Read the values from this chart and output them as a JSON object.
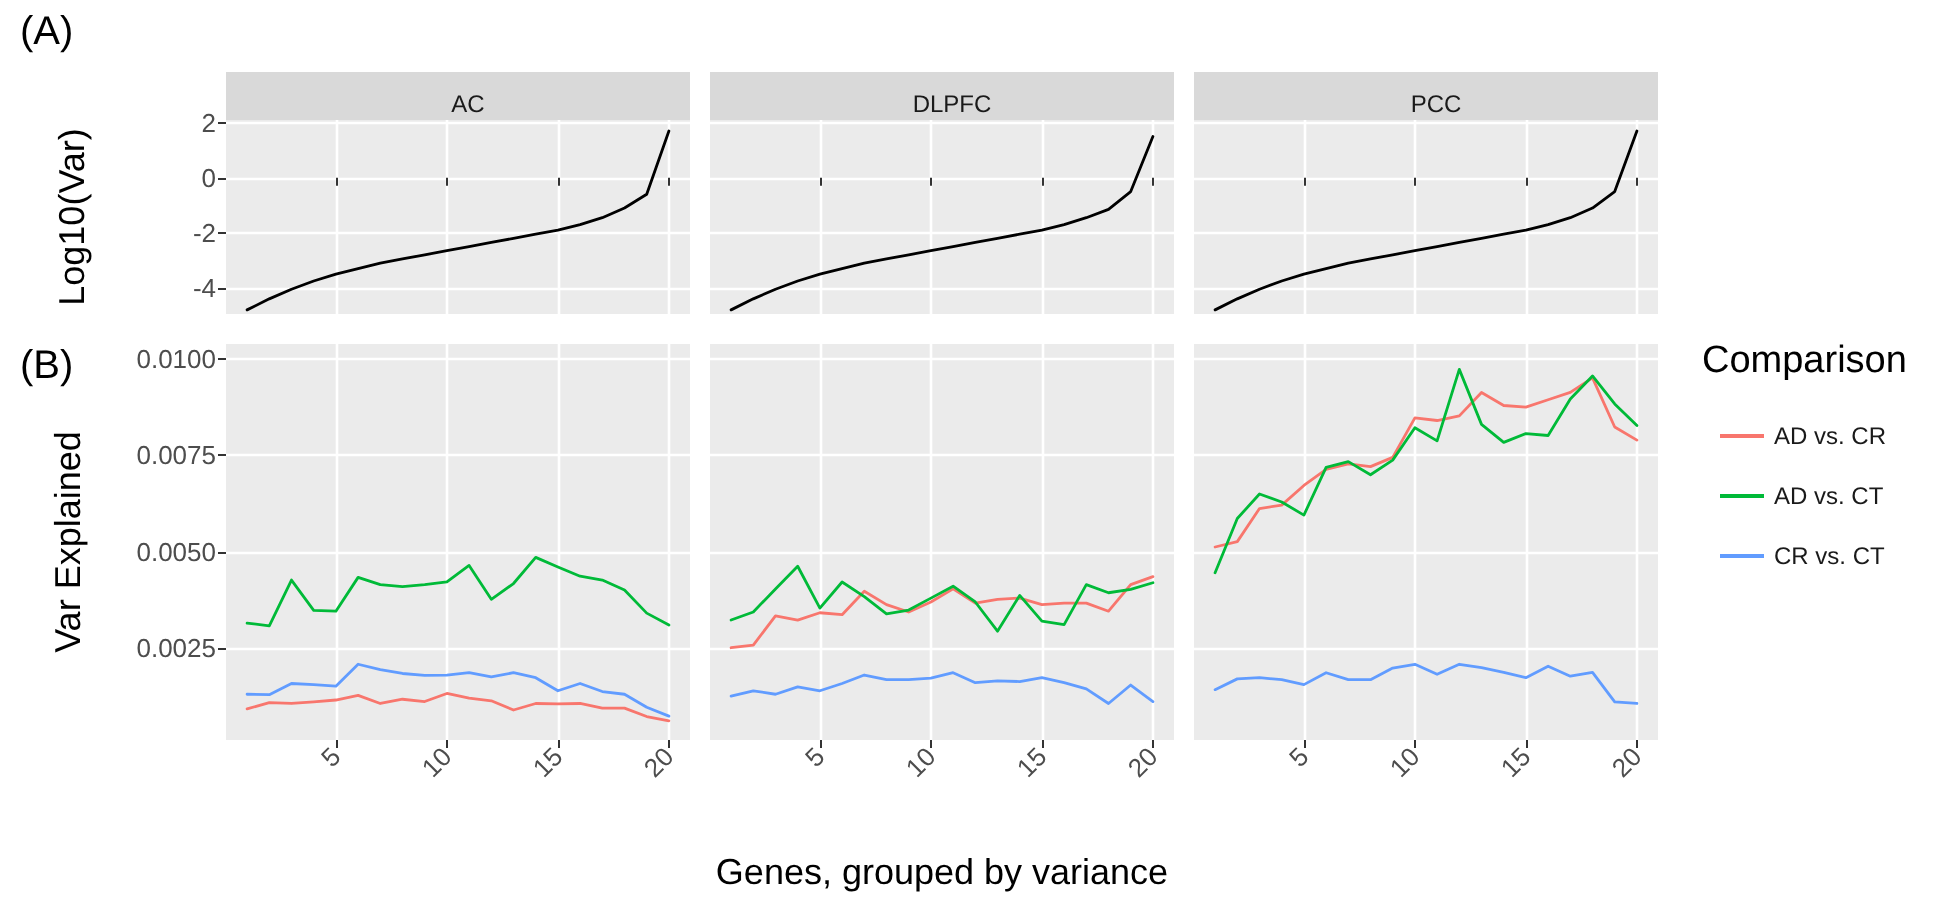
{
  "chart_data": [
    {
      "type": "line",
      "title": "AC",
      "ylabel": "Log10(Var)",
      "annotations": [
        "(A)"
      ],
      "x": [
        1,
        2,
        3,
        4,
        5,
        6,
        7,
        8,
        9,
        10,
        11,
        12,
        13,
        14,
        15,
        16,
        17,
        18,
        19,
        20
      ],
      "xlim": [
        0.05,
        20.95
      ],
      "xticks": [
        5,
        10,
        15,
        20
      ],
      "ylim": [
        -4.95,
        2.1
      ],
      "yticks": [
        -4,
        -2,
        0,
        2
      ],
      "grid": true,
      "tick_labels": "y",
      "series": [
        {
          "color": "#000000",
          "values": [
            -4.8,
            -4.4,
            -4.05,
            -3.75,
            -3.5,
            -3.3,
            -3.1,
            -2.95,
            -2.8,
            -2.65,
            -2.5,
            -2.35,
            -2.2,
            -2.05,
            -1.9,
            -1.7,
            -1.45,
            -1.1,
            -0.6,
            1.7
          ]
        }
      ]
    },
    {
      "type": "line",
      "title": "DLPFC",
      "x": [
        1,
        2,
        3,
        4,
        5,
        6,
        7,
        8,
        9,
        10,
        11,
        12,
        13,
        14,
        15,
        16,
        17,
        18,
        19,
        20
      ],
      "xlim": [
        0.05,
        20.95
      ],
      "xticks": [
        5,
        10,
        15,
        20
      ],
      "ylim": [
        -4.95,
        2.1
      ],
      "yticks": [
        -4,
        -2,
        0,
        2
      ],
      "grid": true,
      "tick_labels": false,
      "series": [
        {
          "color": "#000000",
          "values": [
            -4.8,
            -4.4,
            -4.05,
            -3.75,
            -3.5,
            -3.3,
            -3.1,
            -2.95,
            -2.8,
            -2.65,
            -2.5,
            -2.35,
            -2.2,
            -2.05,
            -1.9,
            -1.7,
            -1.45,
            -1.15,
            -0.5,
            1.5
          ]
        }
      ]
    },
    {
      "type": "line",
      "title": "PCC",
      "x": [
        1,
        2,
        3,
        4,
        5,
        6,
        7,
        8,
        9,
        10,
        11,
        12,
        13,
        14,
        15,
        16,
        17,
        18,
        19,
        20
      ],
      "xlim": [
        0.05,
        20.95
      ],
      "xticks": [
        5,
        10,
        15,
        20
      ],
      "ylim": [
        -4.95,
        2.1
      ],
      "yticks": [
        -4,
        -2,
        0,
        2
      ],
      "grid": true,
      "tick_labels": false,
      "series": [
        {
          "color": "#000000",
          "values": [
            -4.8,
            -4.4,
            -4.05,
            -3.75,
            -3.5,
            -3.3,
            -3.1,
            -2.95,
            -2.8,
            -2.65,
            -2.5,
            -2.35,
            -2.2,
            -2.05,
            -1.9,
            -1.7,
            -1.45,
            -1.1,
            -0.5,
            1.7
          ]
        }
      ]
    },
    {
      "type": "line",
      "ylabel": "Var Explained",
      "annotations": [
        "(B)"
      ],
      "x": [
        1,
        2,
        3,
        4,
        5,
        6,
        7,
        8,
        9,
        10,
        11,
        12,
        13,
        14,
        15,
        16,
        17,
        18,
        19,
        20
      ],
      "xlim": [
        0.05,
        20.95
      ],
      "xticks": [
        5,
        10,
        15,
        20
      ],
      "ylim": [
        0.0001,
        0.0104
      ],
      "yticks": [
        {
          "value": 0.0025,
          "label": "0.0025"
        },
        {
          "value": 0.005,
          "label": "0.0050"
        },
        {
          "value": 0.0075,
          "label": "0.0075"
        },
        {
          "value": 0.01,
          "label": "0.0100"
        }
      ],
      "grid": true,
      "series": [
        {
          "color": "#f8766d",
          "values": [
            0.00091,
            0.00107,
            0.00105,
            0.00109,
            0.00114,
            0.00126,
            0.00105,
            0.00116,
            0.0011,
            0.00131,
            0.00119,
            0.00112,
            0.00088,
            0.00105,
            0.00104,
            0.00105,
            0.00093,
            0.00093,
            0.00071,
            0.0006
          ]
        },
        {
          "color": "#00ba38",
          "values": [
            0.00314,
            0.00307,
            0.00426,
            0.00347,
            0.00345,
            0.00433,
            0.00414,
            0.00409,
            0.00414,
            0.00421,
            0.00464,
            0.00376,
            0.00417,
            0.00485,
            0.0046,
            0.00436,
            0.00426,
            0.004,
            0.0034,
            0.00309
          ]
        },
        {
          "color": "#619cff",
          "values": [
            0.00129,
            0.00128,
            0.00157,
            0.00154,
            0.0015,
            0.00207,
            0.00193,
            0.00183,
            0.00178,
            0.00179,
            0.00185,
            0.00174,
            0.00185,
            0.00172,
            0.00138,
            0.00157,
            0.00136,
            0.00129,
            0.00095,
            0.00072
          ]
        }
      ]
    },
    {
      "type": "line",
      "xlabel": "Genes, grouped by variance",
      "x": [
        1,
        2,
        3,
        4,
        5,
        6,
        7,
        8,
        9,
        10,
        11,
        12,
        13,
        14,
        15,
        16,
        17,
        18,
        19,
        20
      ],
      "xlim": [
        0.05,
        20.95
      ],
      "xticks": [
        5,
        10,
        15,
        20
      ],
      "ylim": [
        0.0001,
        0.0104
      ],
      "yticks": [
        0.0025,
        0.005,
        0.0075,
        0.01
      ],
      "grid": true,
      "tick_labels": "x",
      "series": [
        {
          "color": "#f8766d",
          "values": [
            0.0025,
            0.00257,
            0.00333,
            0.00322,
            0.00341,
            0.00336,
            0.00397,
            0.00362,
            0.00343,
            0.00369,
            0.00403,
            0.00366,
            0.00376,
            0.00379,
            0.00362,
            0.00366,
            0.00366,
            0.00345,
            0.00414,
            0.00435
          ]
        },
        {
          "color": "#00ba38",
          "values": [
            0.00322,
            0.00343,
            0.00403,
            0.00462,
            0.00353,
            0.00421,
            0.00383,
            0.00338,
            0.00348,
            0.00379,
            0.0041,
            0.00369,
            0.00293,
            0.00386,
            0.00319,
            0.0031,
            0.00414,
            0.00393,
            0.00402,
            0.00419
          ]
        },
        {
          "color": "#619cff",
          "values": [
            0.00124,
            0.00138,
            0.00129,
            0.00148,
            0.00138,
            0.00157,
            0.00179,
            0.00167,
            0.00167,
            0.00171,
            0.00185,
            0.00159,
            0.00164,
            0.00162,
            0.00172,
            0.00159,
            0.00143,
            0.00105,
            0.00153,
            0.0011
          ]
        }
      ]
    },
    {
      "type": "line",
      "legend": "right",
      "legend_title": "Comparison",
      "x": [
        1,
        2,
        3,
        4,
        5,
        6,
        7,
        8,
        9,
        10,
        11,
        12,
        13,
        14,
        15,
        16,
        17,
        18,
        19,
        20
      ],
      "xlim": [
        0.05,
        20.95
      ],
      "xticks": [
        5,
        10,
        15,
        20
      ],
      "ylim": [
        0.0001,
        0.0104
      ],
      "yticks": [
        0.0025,
        0.005,
        0.0075,
        0.01
      ],
      "grid": true,
      "tick_labels": "x",
      "series": [
        {
          "name": "AD vs. CR",
          "color": "#f8766d",
          "values": [
            0.00512,
            0.00526,
            0.00612,
            0.00621,
            0.00672,
            0.00714,
            0.00728,
            0.00721,
            0.00745,
            0.00848,
            0.00841,
            0.00853,
            0.00914,
            0.0088,
            0.00876,
            0.00895,
            0.00914,
            0.00952,
            0.00824,
            0.0079
          ]
        },
        {
          "name": "AD vs. CT",
          "color": "#00ba38",
          "values": [
            0.00445,
            0.00586,
            0.0065,
            0.00629,
            0.00595,
            0.00719,
            0.00734,
            0.007,
            0.00738,
            0.00822,
            0.00788,
            0.00974,
            0.00831,
            0.00784,
            0.00807,
            0.00802,
            0.00897,
            0.00957,
            0.00884,
            0.00828
          ]
        },
        {
          "name": "CR vs. CT",
          "color": "#619cff",
          "values": [
            0.00141,
            0.00169,
            0.00172,
            0.00167,
            0.00154,
            0.00185,
            0.00167,
            0.00167,
            0.00197,
            0.00207,
            0.00181,
            0.00207,
            0.00198,
            0.00186,
            0.00172,
            0.00202,
            0.00176,
            0.00186,
            0.00109,
            0.00105
          ]
        }
      ]
    }
  ]
}
